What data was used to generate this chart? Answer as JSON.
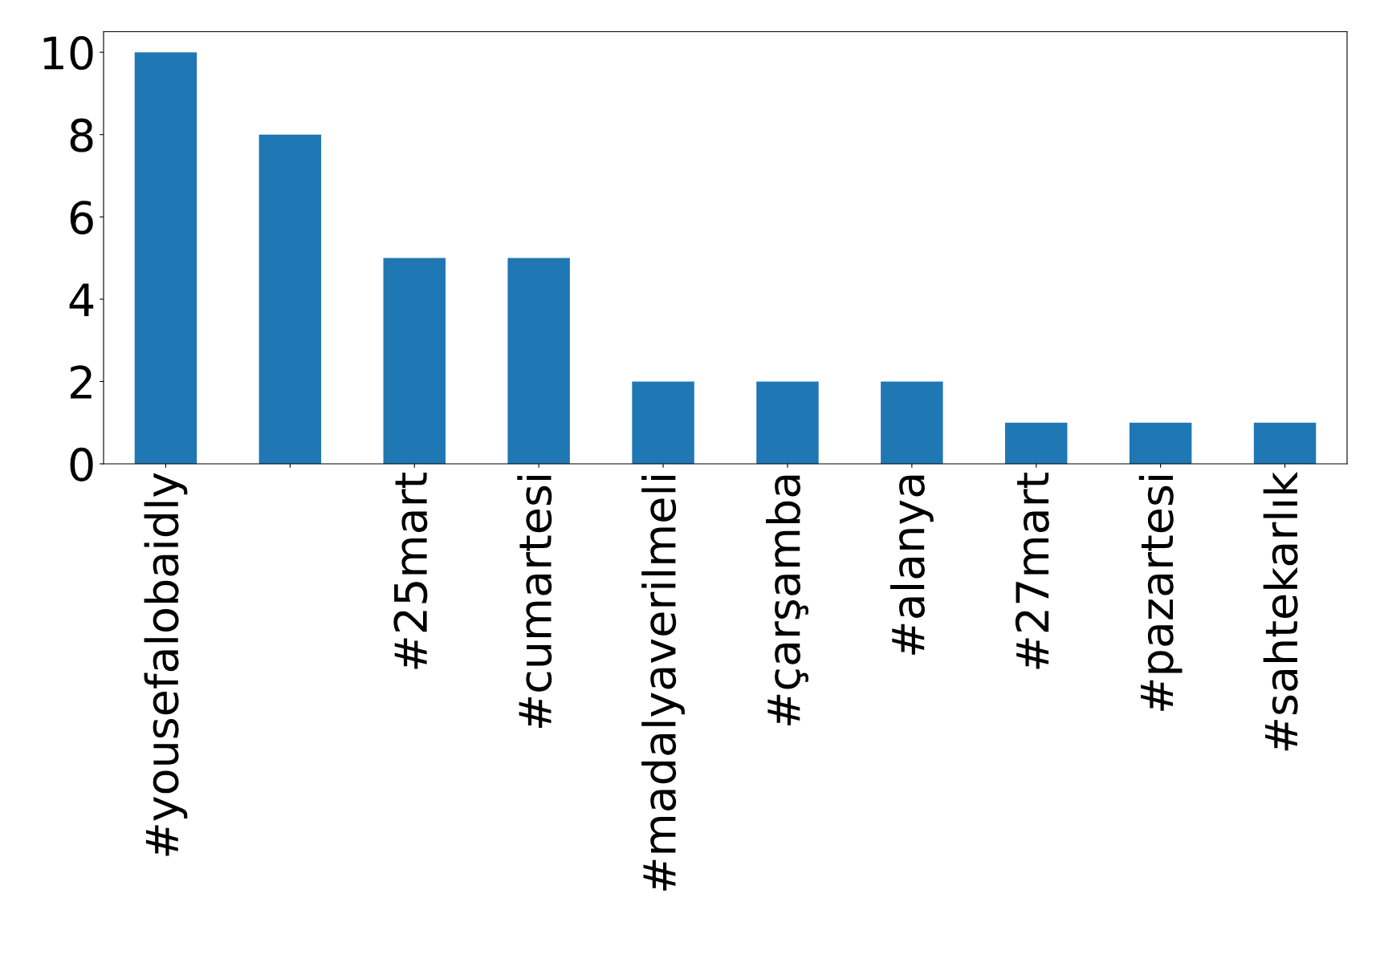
{
  "chart_data": {
    "type": "bar",
    "categories": [
      "#yousefalobaidly",
      null,
      "#25mart",
      "#cumartesi",
      "#madalyaverilmeli",
      "#çarşamba",
      "#alanya",
      "#27mart",
      "#pazartesi",
      "#sahtekarlık"
    ],
    "values": [
      10,
      8,
      5,
      5,
      2,
      2,
      2,
      1,
      1,
      1
    ],
    "color": "#1f77b4",
    "ylim": [
      0,
      10.5
    ],
    "yticks": [
      0,
      2,
      4,
      6,
      8,
      10
    ],
    "grid": false,
    "legend": false
  }
}
